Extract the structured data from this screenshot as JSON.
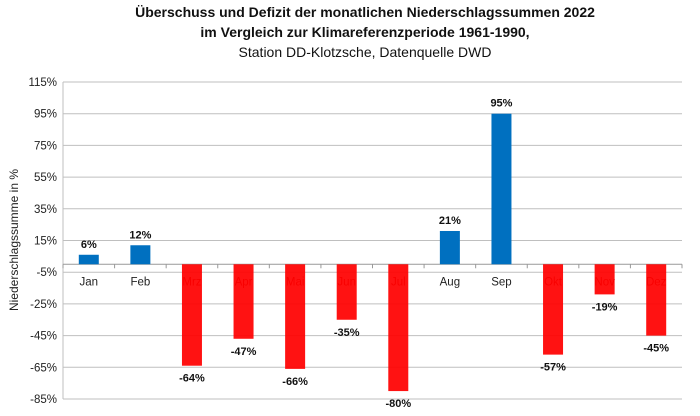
{
  "chart_data": {
    "type": "bar",
    "title": [
      "Überschuss und Defizit der monatlichen Niederschlagssummen 2022",
      "im Vergleich zur Klimareferenzperiode 1961-1990,"
    ],
    "subtitle": "Station DD-Klotzsche, Datenquelle DWD",
    "xlabel": "",
    "ylabel": "Niederschlagssumme in %",
    "categories": [
      "Jan",
      "Feb",
      "Mrz",
      "Apr",
      "Mai",
      "Jun",
      "Jul",
      "Aug",
      "Sep",
      "Okt",
      "Nov",
      "Dez"
    ],
    "values": [
      6,
      12,
      -64,
      -47,
      -66,
      -35,
      -80,
      21,
      95,
      -57,
      -19,
      -45
    ],
    "data_labels": [
      "6%",
      "12%",
      "-64%",
      "-47%",
      "-66%",
      "-35%",
      "-80%",
      "21%",
      "95%",
      "-57%",
      "-19%",
      "-45%"
    ],
    "ylim": [
      -85,
      115
    ],
    "yticks": [
      115,
      95,
      75,
      55,
      35,
      15,
      -5,
      -25,
      -45,
      -65,
      -85
    ],
    "ytick_labels": [
      "115%",
      "95%",
      "75%",
      "55%",
      "35%",
      "15%",
      "-5%",
      "-25%",
      "-45%",
      "-65%",
      "-85%"
    ],
    "grid": true,
    "colors": {
      "positive": "#0070c0",
      "negative": "#ff0000",
      "negative_label": "#a80000",
      "grid": "#bfbfbf"
    }
  }
}
